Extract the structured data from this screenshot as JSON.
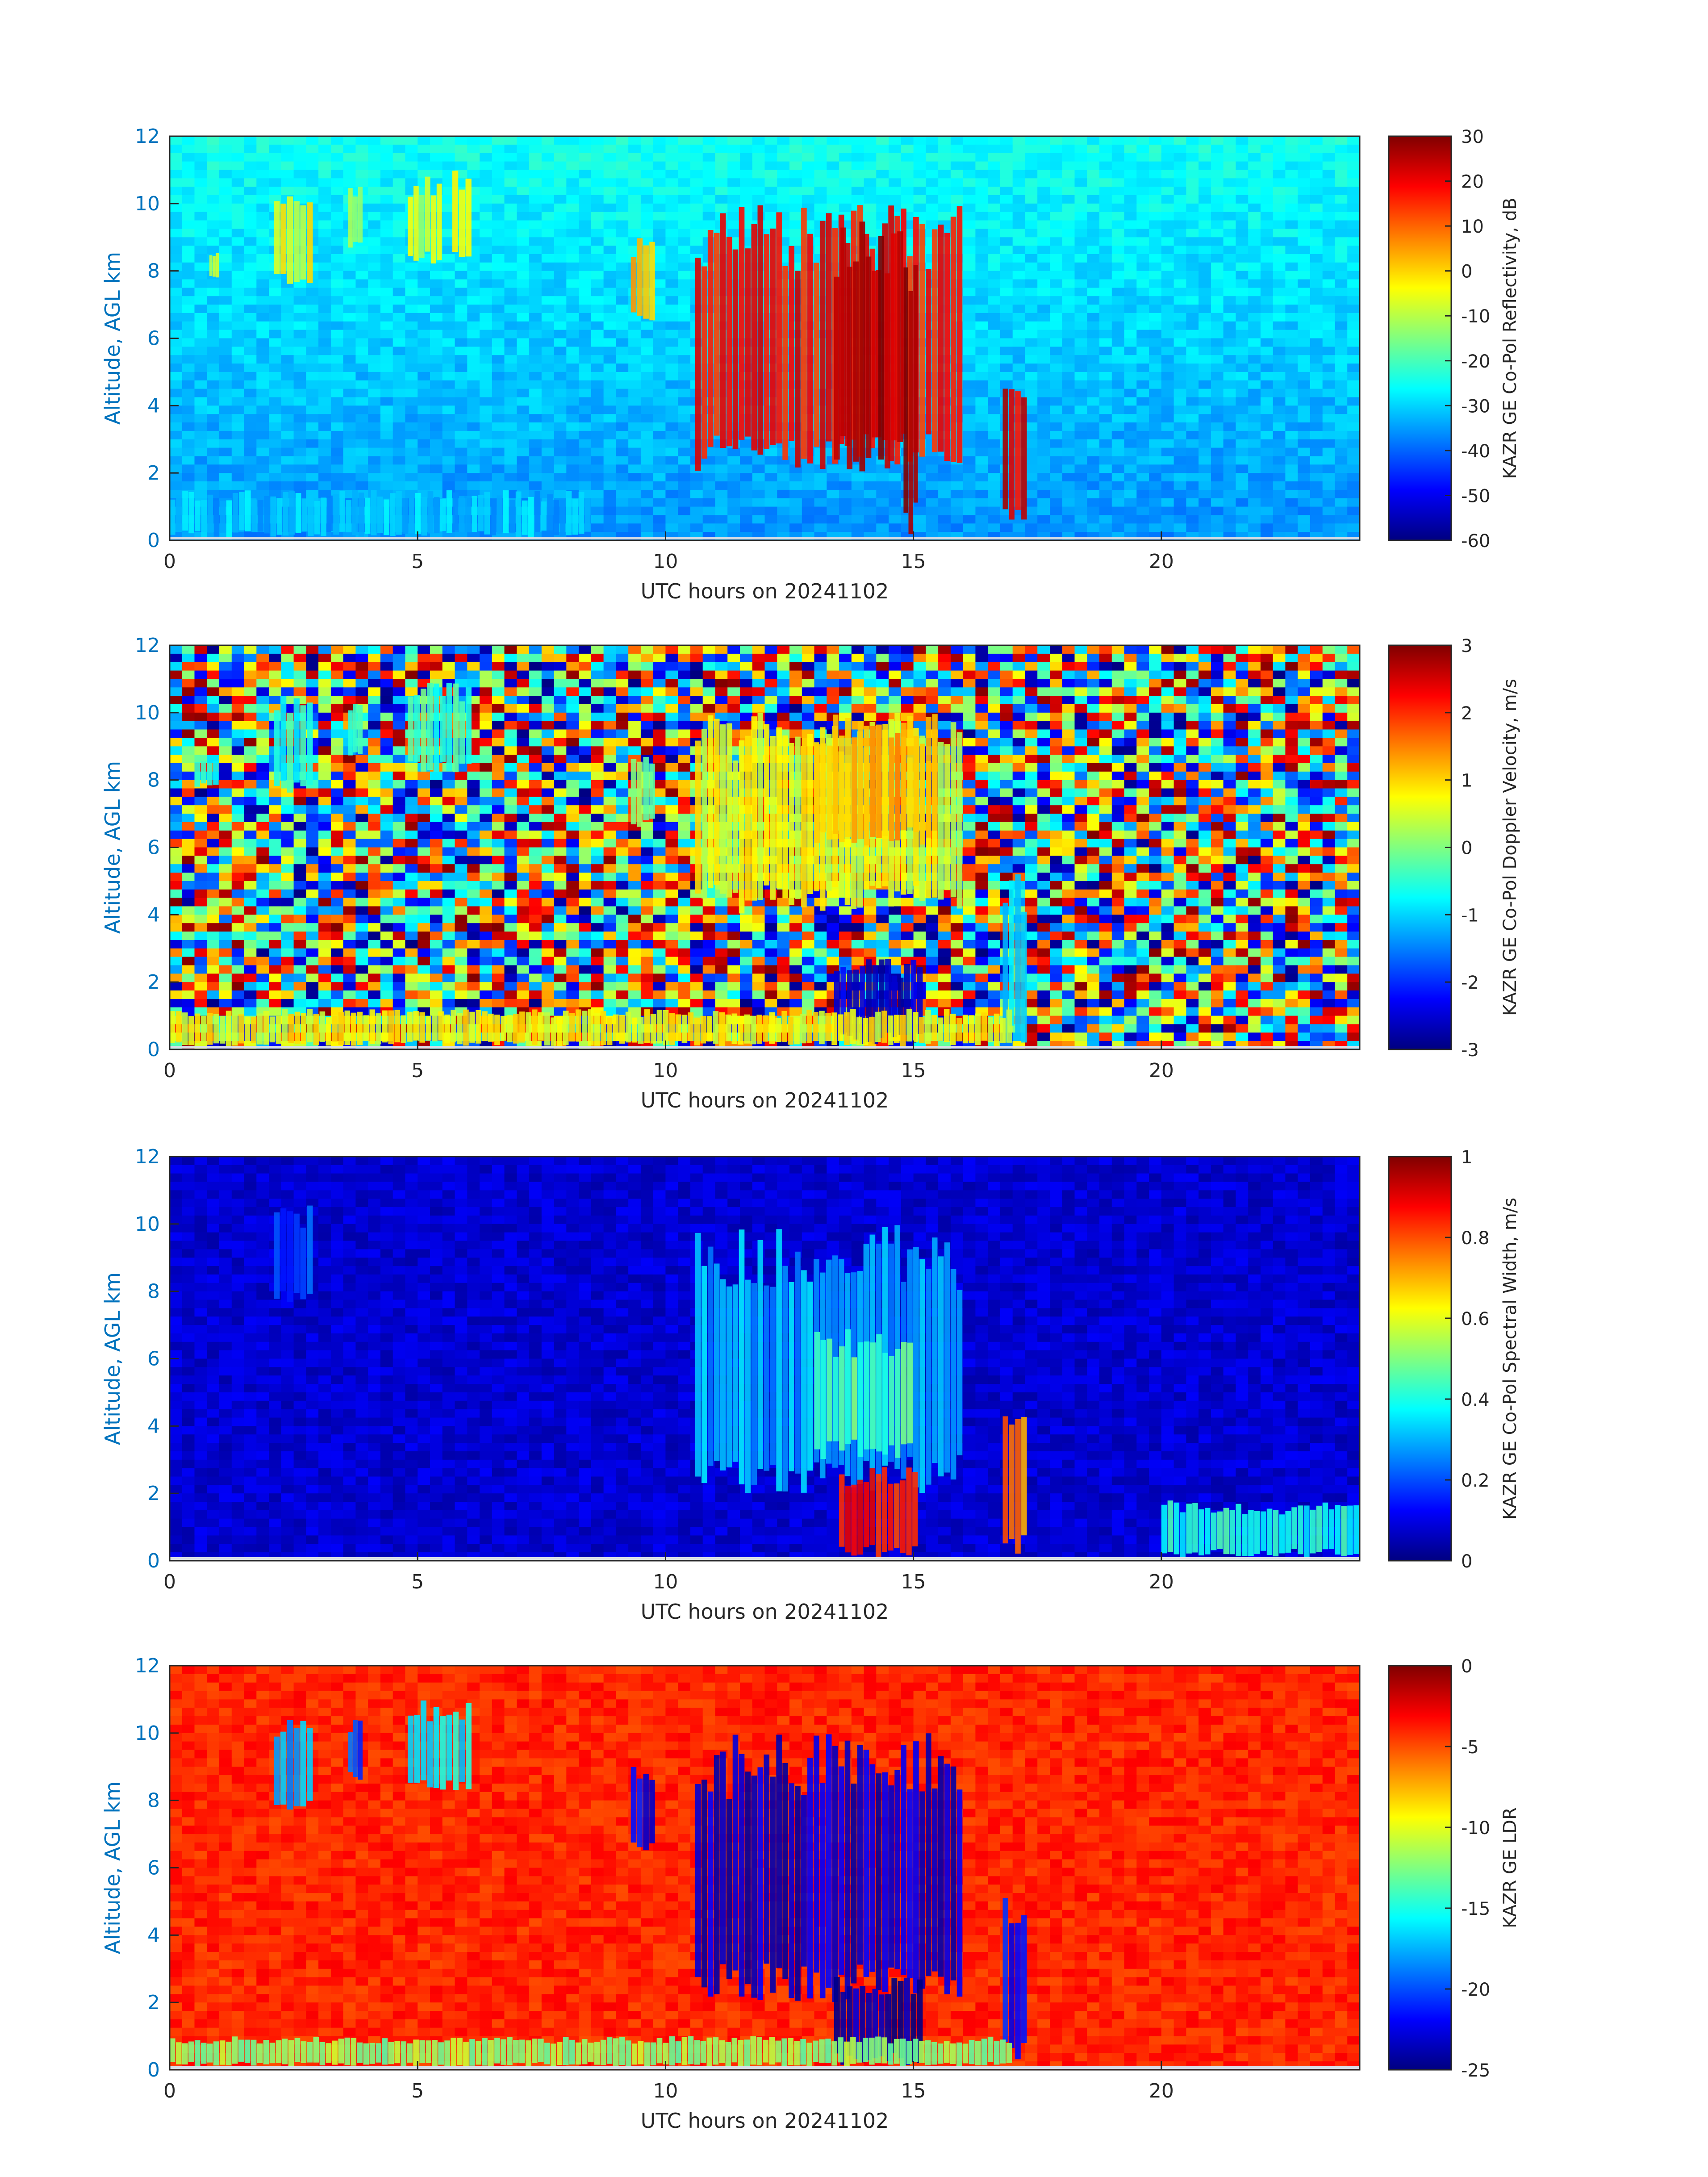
{
  "figure": {
    "shared_xlabel": "UTC hours on 20241102",
    "shared_ylabel": "Altitude, AGL km"
  },
  "chart_data": [
    {
      "type": "heatmap",
      "title": "",
      "xlabel": "UTC hours on 20241102",
      "ylabel": "Altitude, AGL km",
      "xlim": [
        0,
        24
      ],
      "ylim": [
        0,
        12
      ],
      "xticks": [
        0,
        5,
        10,
        15,
        20
      ],
      "yticks": [
        0,
        2,
        4,
        6,
        8,
        10,
        12
      ],
      "colorbar": {
        "label": "KAZR GE Co-Pol Reflectivity, dB",
        "clim": [
          -60,
          30
        ],
        "ticks": [
          -60,
          -50,
          -40,
          -30,
          -20,
          -10,
          0,
          10,
          20,
          30
        ],
        "colormap": "jet"
      },
      "background_level": -25,
      "features": [
        {
          "x": [
            0.8,
            1.0
          ],
          "y": [
            7.8,
            8.6
          ],
          "value": -10
        },
        {
          "x": [
            2.1,
            2.9
          ],
          "y": [
            7.6,
            10.6
          ],
          "value": -5
        },
        {
          "x": [
            3.6,
            3.9
          ],
          "y": [
            8.6,
            10.5
          ],
          "value": -10
        },
        {
          "x": [
            4.8,
            5.5
          ],
          "y": [
            8.2,
            10.8
          ],
          "value": -8
        },
        {
          "x": [
            5.7,
            6.1
          ],
          "y": [
            8.4,
            11.0
          ],
          "value": -8
        },
        {
          "x": [
            9.3,
            9.8
          ],
          "y": [
            6.5,
            9.0
          ],
          "value": 3
        },
        {
          "x": [
            10.6,
            16.0
          ],
          "y": [
            2.0,
            10.0
          ],
          "value": 18
        },
        {
          "x": [
            13.4,
            14.8
          ],
          "y": [
            2.0,
            9.5
          ],
          "value": 25
        },
        {
          "x": [
            14.8,
            15.1
          ],
          "y": [
            0.1,
            9.0
          ],
          "value": 26
        },
        {
          "x": [
            16.8,
            17.3
          ],
          "y": [
            0.2,
            5.2
          ],
          "value": 22
        },
        {
          "x": [
            0.0,
            8.5
          ],
          "y": [
            0.1,
            1.5
          ],
          "value": -32
        }
      ]
    },
    {
      "type": "heatmap",
      "title": "",
      "xlabel": "UTC hours on 20241102",
      "ylabel": "Altitude, AGL km",
      "xlim": [
        0,
        24
      ],
      "ylim": [
        0,
        12
      ],
      "xticks": [
        0,
        5,
        10,
        15,
        20
      ],
      "yticks": [
        0,
        2,
        4,
        6,
        8,
        10,
        12
      ],
      "colorbar": {
        "label": "KAZR GE Co-Pol Doppler Velocity, m/s",
        "clim": [
          -3,
          3
        ],
        "ticks": [
          -3,
          -2,
          -1,
          0,
          1,
          2,
          3
        ],
        "colormap": "jet"
      },
      "background_level": "noise",
      "features": [
        {
          "x": [
            0.5,
            1.0
          ],
          "y": [
            7.8,
            8.6
          ],
          "value": -0.6
        },
        {
          "x": [
            2.1,
            2.9
          ],
          "y": [
            7.6,
            10.6
          ],
          "value": -0.6
        },
        {
          "x": [
            3.6,
            3.9
          ],
          "y": [
            8.6,
            10.5
          ],
          "value": -0.4
        },
        {
          "x": [
            4.8,
            6.1
          ],
          "y": [
            8.2,
            11.0
          ],
          "value": -0.4
        },
        {
          "x": [
            9.3,
            9.8
          ],
          "y": [
            6.5,
            9.0
          ],
          "value": -0.2
        },
        {
          "x": [
            10.6,
            16.0
          ],
          "y": [
            4.0,
            10.0
          ],
          "value": 0.6
        },
        {
          "x": [
            13.0,
            15.5
          ],
          "y": [
            6.0,
            10.0
          ],
          "value": 1.2
        },
        {
          "x": [
            13.4,
            15.2
          ],
          "y": [
            0.1,
            2.8
          ],
          "value": -2.5
        },
        {
          "x": [
            16.8,
            17.3
          ],
          "y": [
            0.2,
            5.2
          ],
          "value": -1.0
        },
        {
          "x": [
            0.0,
            17.0
          ],
          "y": [
            0.1,
            1.2
          ],
          "value": 0.7
        }
      ]
    },
    {
      "type": "heatmap",
      "title": "",
      "xlabel": "UTC hours on 20241102",
      "ylabel": "Altitude, AGL km",
      "xlim": [
        0,
        24
      ],
      "ylim": [
        0,
        12
      ],
      "xticks": [
        0,
        5,
        10,
        15,
        20
      ],
      "yticks": [
        0,
        2,
        4,
        6,
        8,
        10,
        12
      ],
      "colorbar": {
        "label": "KAZR GE Co-Pol Spectral Width, m/s",
        "clim": [
          0,
          1
        ],
        "ticks": [
          0,
          0.2,
          0.4,
          0.6,
          0.8,
          1
        ],
        "colormap": "jet"
      },
      "background_level": 0.08,
      "features": [
        {
          "x": [
            2.1,
            2.9
          ],
          "y": [
            7.6,
            10.6
          ],
          "value": 0.2
        },
        {
          "x": [
            10.6,
            16.0
          ],
          "y": [
            2.0,
            10.0
          ],
          "value": 0.3
        },
        {
          "x": [
            13.0,
            15.0
          ],
          "y": [
            3.0,
            7.0
          ],
          "value": 0.45
        },
        {
          "x": [
            13.5,
            15.1
          ],
          "y": [
            0.1,
            2.8
          ],
          "value": 0.85
        },
        {
          "x": [
            16.8,
            17.3
          ],
          "y": [
            0.2,
            5.2
          ],
          "value": 0.75
        },
        {
          "x": [
            20.0,
            24.0
          ],
          "y": [
            0.1,
            1.8
          ],
          "value": 0.4
        }
      ]
    },
    {
      "type": "heatmap",
      "title": "",
      "xlabel": "UTC hours on 20241102",
      "ylabel": "Altitude, AGL km",
      "xlim": [
        0,
        24
      ],
      "ylim": [
        0,
        12
      ],
      "xticks": [
        0,
        5,
        10,
        15,
        20
      ],
      "yticks": [
        0,
        2,
        4,
        6,
        8,
        10,
        12
      ],
      "colorbar": {
        "label": "KAZR GE LDR",
        "clim": [
          -25,
          0
        ],
        "ticks": [
          -25,
          -20,
          -15,
          -10,
          -5,
          0
        ],
        "colormap": "jet"
      },
      "background_level": -4,
      "features": [
        {
          "x": [
            2.1,
            2.9
          ],
          "y": [
            7.6,
            10.6
          ],
          "value": -18
        },
        {
          "x": [
            3.6,
            3.9
          ],
          "y": [
            8.6,
            10.5
          ],
          "value": -20
        },
        {
          "x": [
            4.8,
            6.1
          ],
          "y": [
            8.2,
            11.0
          ],
          "value": -16
        },
        {
          "x": [
            9.3,
            9.8
          ],
          "y": [
            6.5,
            9.0
          ],
          "value": -22
        },
        {
          "x": [
            10.6,
            16.0
          ],
          "y": [
            2.0,
            10.0
          ],
          "value": -23
        },
        {
          "x": [
            13.4,
            15.2
          ],
          "y": [
            0.1,
            2.8
          ],
          "value": -24
        },
        {
          "x": [
            16.8,
            17.3
          ],
          "y": [
            0.2,
            5.2
          ],
          "value": -22
        },
        {
          "x": [
            0.0,
            17.0
          ],
          "y": [
            0.1,
            1.0
          ],
          "value": -12
        }
      ]
    }
  ]
}
